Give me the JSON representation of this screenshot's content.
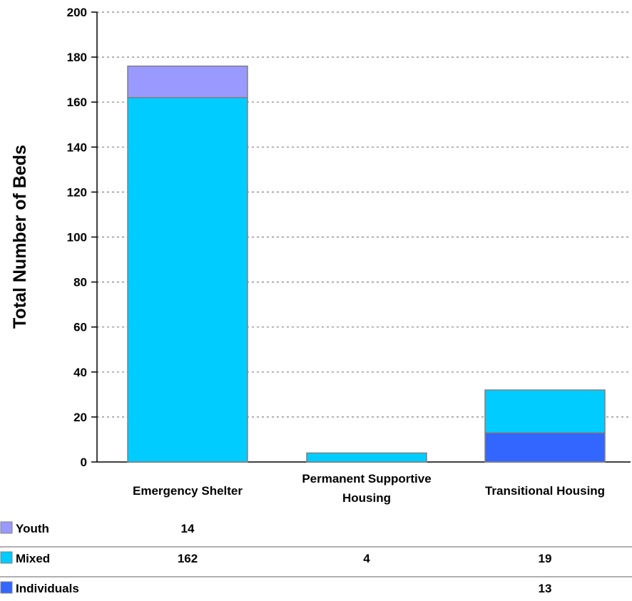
{
  "chart_data": {
    "type": "bar",
    "stacked": true,
    "title": "",
    "xlabel": "",
    "ylabel": "Total Number of Beds",
    "ylim": [
      0,
      200
    ],
    "yticks": [
      0,
      20,
      40,
      60,
      80,
      100,
      120,
      140,
      160,
      180,
      200
    ],
    "grid": true,
    "categories": [
      [
        "Emergency Shelter"
      ],
      [
        "Permanent Supportive",
        "Housing"
      ],
      [
        "Transitional Housing"
      ]
    ],
    "series": [
      {
        "name": "Individuals",
        "color": "#3366ff",
        "values": [
          null,
          null,
          13
        ]
      },
      {
        "name": "Mixed",
        "color": "#00ccff",
        "values": [
          162,
          4,
          19
        ]
      },
      {
        "name": "Youth",
        "color": "#9999ff",
        "values": [
          14,
          null,
          null
        ]
      }
    ],
    "data_table": {
      "row_order": [
        "Youth",
        "Mixed",
        "Individuals"
      ]
    }
  }
}
